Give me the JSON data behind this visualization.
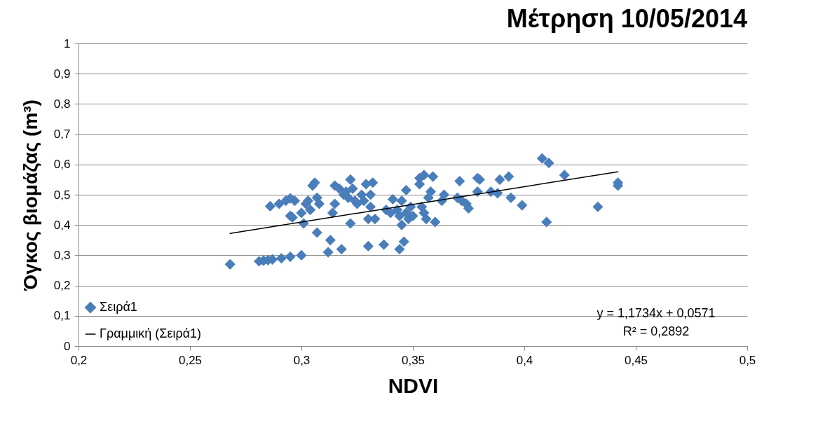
{
  "chart_data": {
    "type": "scatter",
    "title": "Μέτρηση 10/05/2014",
    "xlabel": "NDVI",
    "ylabel": "Όγκος βιομάζας (m³)",
    "xlim": [
      0.2,
      0.5
    ],
    "ylim": [
      0,
      1
    ],
    "xticks": [
      {
        "value": 0.2,
        "label": "0,2"
      },
      {
        "value": 0.25,
        "label": "0,25"
      },
      {
        "value": 0.3,
        "label": "0,3"
      },
      {
        "value": 0.35,
        "label": "0,35"
      },
      {
        "value": 0.4,
        "label": "0,4"
      },
      {
        "value": 0.45,
        "label": "0,45"
      },
      {
        "value": 0.5,
        "label": "0,5"
      }
    ],
    "yticks": [
      0,
      {
        "value": 0.1,
        "label": "0,1"
      },
      {
        "value": 0.2,
        "label": "0,2"
      },
      {
        "value": 0.3,
        "label": "0,3"
      },
      {
        "value": 0.4,
        "label": "0,4"
      },
      {
        "value": 0.5,
        "label": "0,5"
      },
      {
        "value": 0.6,
        "label": "0,6"
      },
      {
        "value": 0.7,
        "label": "0,7"
      },
      {
        "value": 0.8,
        "label": "0,8"
      },
      {
        "value": 0.9,
        "label": "0,9"
      },
      1
    ],
    "grid": "y",
    "legend": "bottom left",
    "annotations": [
      "y = 1,1734x + 0,0571",
      "R² = 0,2892"
    ],
    "series": [
      {
        "name": "Σειρά1",
        "marker": "diamond",
        "color": "#4a7ebb",
        "x": [
          0.268,
          0.281,
          0.283,
          0.285,
          0.287,
          0.291,
          0.295,
          0.3,
          0.286,
          0.29,
          0.293,
          0.295,
          0.297,
          0.295,
          0.296,
          0.3,
          0.301,
          0.302,
          0.303,
          0.304,
          0.305,
          0.306,
          0.307,
          0.308,
          0.307,
          0.312,
          0.313,
          0.314,
          0.315,
          0.315,
          0.317,
          0.318,
          0.319,
          0.32,
          0.321,
          0.322,
          0.322,
          0.323,
          0.324,
          0.325,
          0.327,
          0.328,
          0.329,
          0.33,
          0.33,
          0.331,
          0.331,
          0.332,
          0.333,
          0.337,
          0.338,
          0.34,
          0.341,
          0.343,
          0.344,
          0.344,
          0.345,
          0.345,
          0.346,
          0.347,
          0.347,
          0.348,
          0.349,
          0.35,
          0.353,
          0.353,
          0.354,
          0.355,
          0.355,
          0.356,
          0.357,
          0.358,
          0.359,
          0.36,
          0.363,
          0.364,
          0.37,
          0.371,
          0.372,
          0.374,
          0.375,
          0.379,
          0.379,
          0.38,
          0.385,
          0.388,
          0.389,
          0.393,
          0.394,
          0.399,
          0.408,
          0.41,
          0.411,
          0.418,
          0.433,
          0.442,
          0.442
        ],
        "values": [
          0.27,
          0.28,
          0.282,
          0.284,
          0.286,
          0.29,
          0.295,
          0.3,
          0.462,
          0.47,
          0.48,
          0.488,
          0.48,
          0.43,
          0.425,
          0.44,
          0.405,
          0.47,
          0.48,
          0.45,
          0.53,
          0.54,
          0.49,
          0.47,
          0.375,
          0.31,
          0.35,
          0.44,
          0.47,
          0.53,
          0.52,
          0.32,
          0.5,
          0.51,
          0.49,
          0.405,
          0.55,
          0.52,
          0.48,
          0.47,
          0.5,
          0.48,
          0.535,
          0.42,
          0.33,
          0.46,
          0.5,
          0.54,
          0.42,
          0.335,
          0.45,
          0.44,
          0.485,
          0.45,
          0.32,
          0.43,
          0.48,
          0.4,
          0.345,
          0.44,
          0.515,
          0.42,
          0.46,
          0.43,
          0.555,
          0.535,
          0.46,
          0.565,
          0.44,
          0.42,
          0.49,
          0.51,
          0.56,
          0.41,
          0.48,
          0.5,
          0.49,
          0.545,
          0.48,
          0.47,
          0.455,
          0.51,
          0.555,
          0.55,
          0.51,
          0.505,
          0.55,
          0.56,
          0.49,
          0.465,
          0.62,
          0.41,
          0.605,
          0.565,
          0.46,
          0.54,
          0.53
        ]
      },
      {
        "name": "Γραμμική (Σειρά1)",
        "type": "line",
        "marker": "none",
        "color": "#000000",
        "x": [
          0.268,
          0.442
        ],
        "values": [
          0.372,
          0.576
        ]
      }
    ]
  }
}
